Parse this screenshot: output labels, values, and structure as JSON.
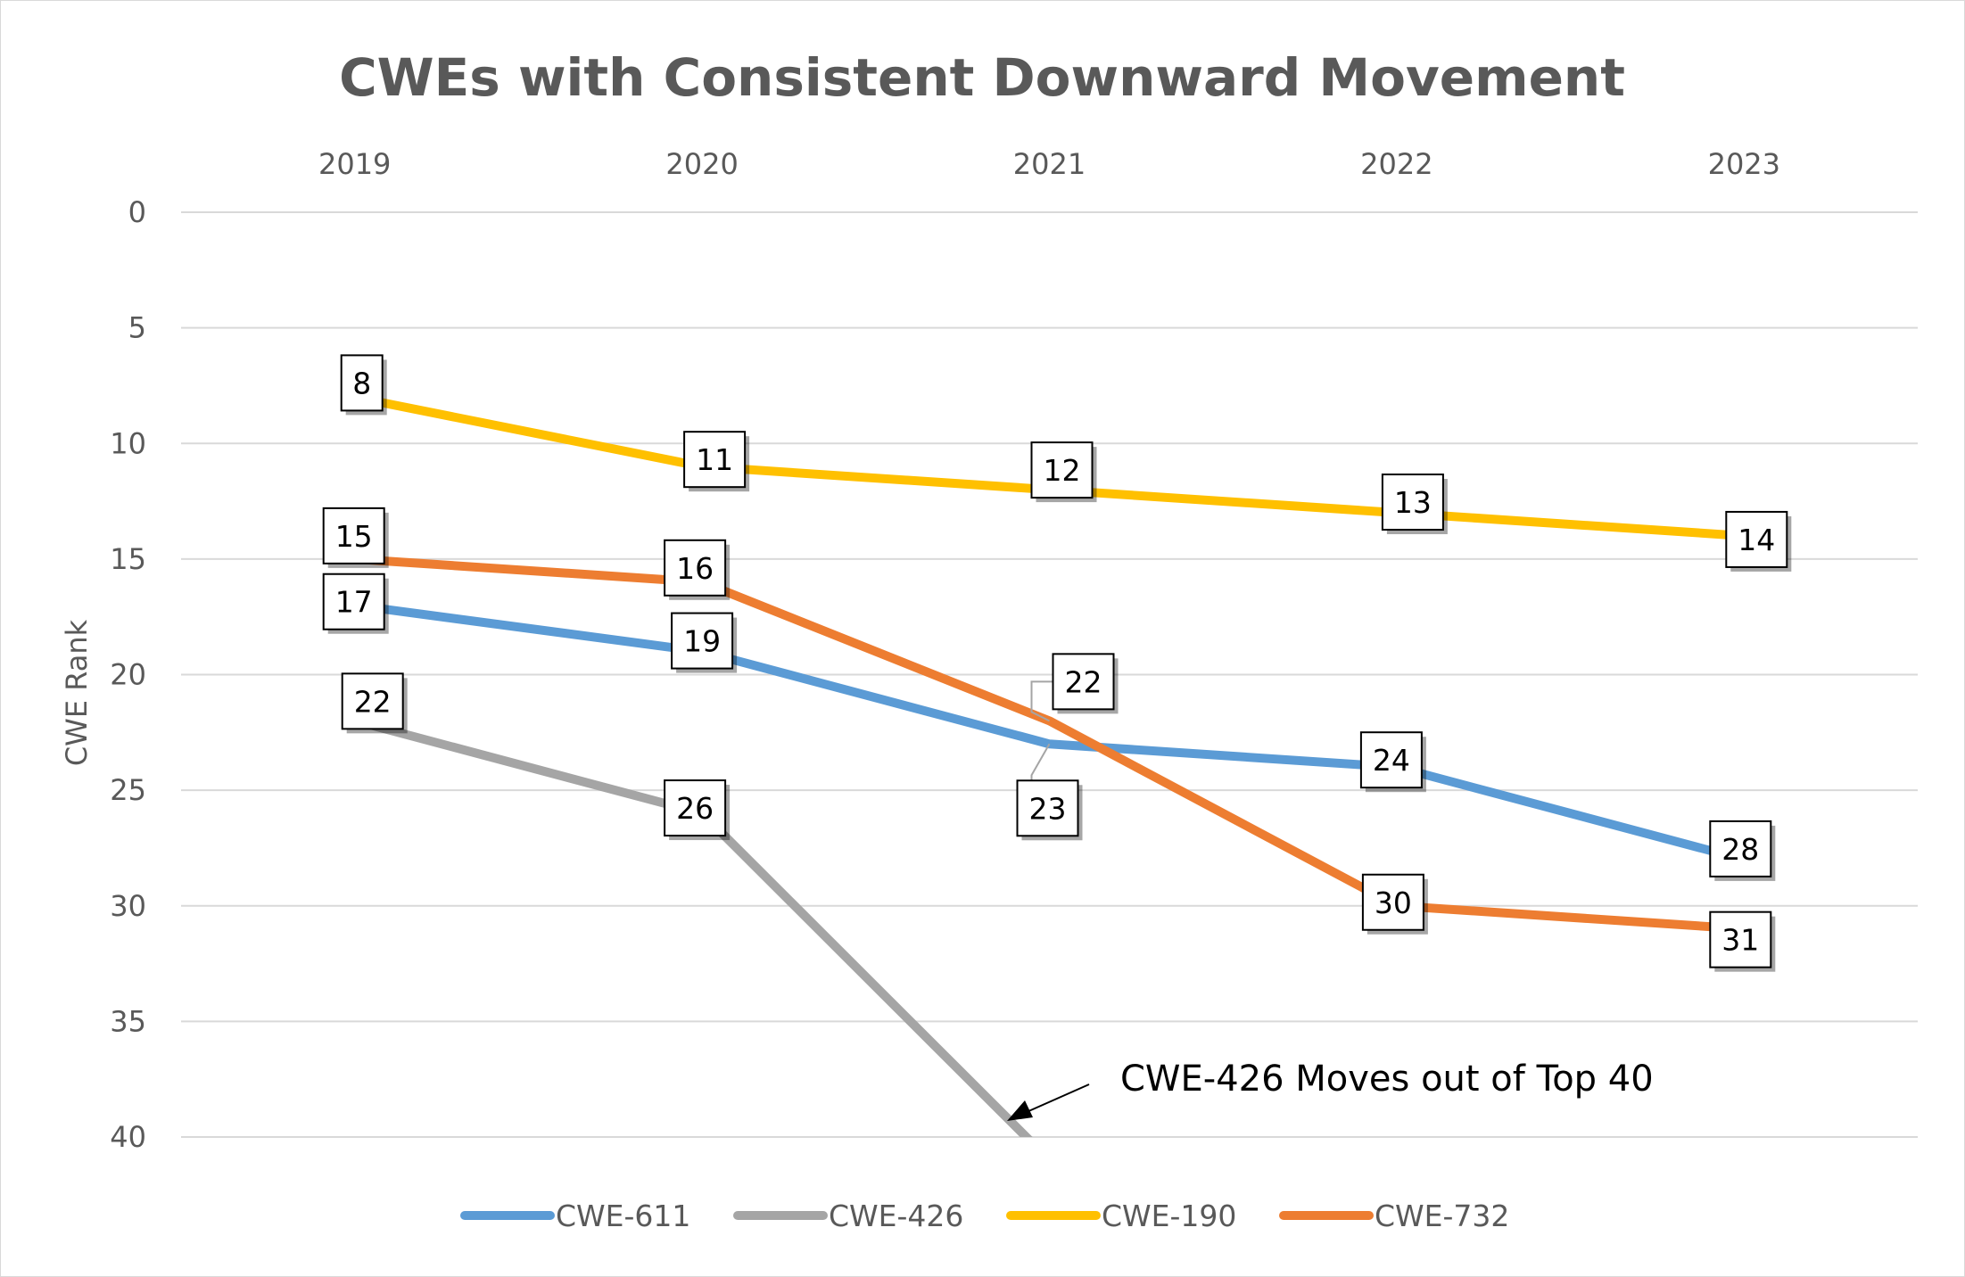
{
  "chart_data": {
    "type": "line",
    "title": "CWEs with Consistent Downward Movement",
    "xlabel": "",
    "ylabel": "CWE Rank",
    "x": [
      "2019",
      "2020",
      "2021",
      "2022",
      "2023"
    ],
    "ylim": [
      0,
      40
    ],
    "y_reversed": true,
    "y_ticks": [
      0,
      5,
      10,
      15,
      20,
      25,
      30,
      35,
      40
    ],
    "x_axis_position": "top",
    "grid": true,
    "legend": "bottom",
    "series": [
      {
        "name": "CWE-611",
        "color": "#5b9bd5",
        "values": [
          17,
          19,
          23,
          24,
          28
        ]
      },
      {
        "name": "CWE-426",
        "color": "#a5a5a5",
        "values": [
          22,
          26,
          41,
          null,
          null
        ]
      },
      {
        "name": "CWE-190",
        "color": "#ffc000",
        "values": [
          8,
          11,
          12,
          13,
          14
        ]
      },
      {
        "name": "CWE-732",
        "color": "#ed7d31",
        "values": [
          15,
          16,
          22,
          30,
          31
        ]
      }
    ],
    "annotation": {
      "text": "CWE-426 Moves out of Top 40"
    }
  }
}
